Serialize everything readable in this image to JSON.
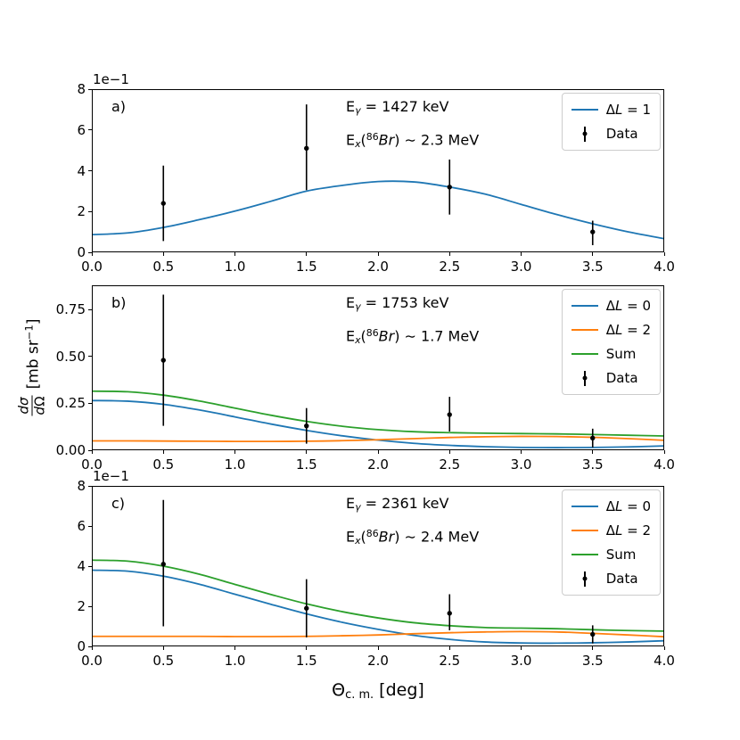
{
  "figure": {
    "xlabel_parts": [
      {
        "t": "Θ"
      },
      {
        "t": "c. m.",
        "s": "sub"
      },
      {
        "t": " [deg]"
      }
    ],
    "ylabel": {
      "numerator_parts": [
        {
          "t": "d",
          "s": "i"
        },
        {
          "t": "σ",
          "s": "i"
        }
      ],
      "denominator_parts": [
        {
          "t": "d",
          "s": "i"
        },
        {
          "t": "Ω"
        }
      ],
      "unit_parts": [
        {
          "t": "[mb sr"
        },
        {
          "t": "−1",
          "s": "sup"
        },
        {
          "t": "]"
        }
      ]
    },
    "colors": {
      "blue": "#1f77b4",
      "orange": "#ff7f0e",
      "green": "#2ca02c",
      "data": "#000000"
    }
  },
  "chart_data": [
    {
      "type": "line",
      "panel_label": "a)",
      "offset_text": "1e−1",
      "annotation_lines": [
        [
          {
            "t": "E"
          },
          {
            "t": "γ",
            "s": "i sub"
          },
          {
            "t": " = 1427 keV"
          }
        ],
        [
          {
            "t": "E"
          },
          {
            "t": "x",
            "s": "i sub"
          },
          {
            "t": "("
          },
          {
            "t": "86",
            "s": "sup"
          },
          {
            "t": "Br",
            "s": "i"
          },
          {
            "t": ") ∼ 2.3 MeV"
          }
        ]
      ],
      "xlim": [
        0,
        4
      ],
      "ylim": [
        0,
        8
      ],
      "xtick_labels": [
        "0.0",
        "0.5",
        "1.0",
        "1.5",
        "2.0",
        "2.5",
        "3.0",
        "3.5",
        "4.0"
      ],
      "xtick_values": [
        0,
        0.5,
        1,
        1.5,
        2,
        2.5,
        3,
        3.5,
        4
      ],
      "ytick_labels": [
        "0",
        "2",
        "4",
        "6",
        "8"
      ],
      "ytick_values": [
        0,
        2,
        4,
        6,
        8
      ],
      "series": [
        {
          "name": "ΔL = 1",
          "label_parts": [
            {
              "t": "Δ"
            },
            {
              "t": "L",
              "s": "i"
            },
            {
              "t": " = 1"
            }
          ],
          "color": "#1f77b4",
          "x": [
            0,
            0.25,
            0.5,
            0.75,
            1,
            1.25,
            1.5,
            1.75,
            2,
            2.25,
            2.5,
            2.75,
            3,
            3.25,
            3.5,
            3.75,
            4
          ],
          "y": [
            0.87,
            0.95,
            1.22,
            1.6,
            2.02,
            2.5,
            3.0,
            3.28,
            3.47,
            3.45,
            3.2,
            2.85,
            2.35,
            1.85,
            1.4,
            1.0,
            0.67
          ]
        }
      ],
      "data_points": {
        "name": "Data",
        "x": [
          0.5,
          1.5,
          2.5,
          3.5
        ],
        "y": [
          2.4,
          5.1,
          3.2,
          1.0
        ],
        "yerr_lo": [
          1.85,
          2.05,
          1.35,
          0.65
        ],
        "yerr_hi": [
          1.85,
          2.15,
          1.35,
          0.55
        ]
      }
    },
    {
      "type": "line",
      "panel_label": "b)",
      "offset_text": "",
      "annotation_lines": [
        [
          {
            "t": "E"
          },
          {
            "t": "γ",
            "s": "i sub"
          },
          {
            "t": " = 1753 keV"
          }
        ],
        [
          {
            "t": "E"
          },
          {
            "t": "x",
            "s": "i sub"
          },
          {
            "t": "("
          },
          {
            "t": "86",
            "s": "sup"
          },
          {
            "t": "Br",
            "s": "i"
          },
          {
            "t": ") ∼ 1.7 MeV"
          }
        ]
      ],
      "xlim": [
        0,
        4
      ],
      "ylim": [
        0,
        0.88
      ],
      "xtick_labels": [
        "0.0",
        "0.5",
        "1.0",
        "1.5",
        "2.0",
        "2.5",
        "3.0",
        "3.5",
        "4.0"
      ],
      "xtick_values": [
        0,
        0.5,
        1,
        1.5,
        2,
        2.5,
        3,
        3.5,
        4
      ],
      "ytick_labels": [
        "0.00",
        "0.25",
        "0.50",
        "0.75"
      ],
      "ytick_values": [
        0,
        0.25,
        0.5,
        0.75
      ],
      "series": [
        {
          "name": "ΔL = 0",
          "label_parts": [
            {
              "t": "Δ"
            },
            {
              "t": "L",
              "s": "i"
            },
            {
              "t": " = 0"
            }
          ],
          "color": "#1f77b4",
          "x": [
            0,
            0.25,
            0.5,
            0.75,
            1,
            1.25,
            1.5,
            1.75,
            2,
            2.25,
            2.5,
            2.75,
            3,
            3.25,
            3.5,
            3.75,
            4
          ],
          "y": [
            0.265,
            0.262,
            0.245,
            0.215,
            0.178,
            0.14,
            0.106,
            0.077,
            0.054,
            0.037,
            0.026,
            0.019,
            0.015,
            0.014,
            0.015,
            0.018,
            0.023
          ]
        },
        {
          "name": "ΔL = 2",
          "label_parts": [
            {
              "t": "Δ"
            },
            {
              "t": "L",
              "s": "i"
            },
            {
              "t": " = 2"
            }
          ],
          "color": "#ff7f0e",
          "x": [
            0,
            0.25,
            0.5,
            0.75,
            1,
            1.25,
            1.5,
            1.75,
            2,
            2.25,
            2.5,
            2.75,
            3,
            3.25,
            3.5,
            3.75,
            4
          ],
          "y": [
            0.05,
            0.05,
            0.049,
            0.048,
            0.047,
            0.047,
            0.048,
            0.051,
            0.056,
            0.062,
            0.068,
            0.072,
            0.074,
            0.073,
            0.069,
            0.062,
            0.053
          ]
        },
        {
          "name": "Sum",
          "label_parts": [
            {
              "t": "Sum"
            }
          ],
          "color": "#2ca02c",
          "x": [
            0,
            0.25,
            0.5,
            0.75,
            1,
            1.25,
            1.5,
            1.75,
            2,
            2.25,
            2.5,
            2.75,
            3,
            3.25,
            3.5,
            3.75,
            4
          ],
          "y": [
            0.315,
            0.312,
            0.294,
            0.263,
            0.225,
            0.187,
            0.154,
            0.128,
            0.11,
            0.099,
            0.094,
            0.091,
            0.089,
            0.087,
            0.084,
            0.08,
            0.076
          ]
        }
      ],
      "data_points": {
        "name": "Data",
        "x": [
          0.5,
          1.5,
          2.5,
          3.5
        ],
        "y": [
          0.48,
          0.13,
          0.19,
          0.065
        ],
        "yerr_lo": [
          0.35,
          0.095,
          0.09,
          0.05
        ],
        "yerr_hi": [
          0.35,
          0.095,
          0.095,
          0.05
        ]
      }
    },
    {
      "type": "line",
      "panel_label": "c)",
      "offset_text": "1e−1",
      "annotation_lines": [
        [
          {
            "t": "E"
          },
          {
            "t": "γ",
            "s": "i sub"
          },
          {
            "t": " = 2361 keV"
          }
        ],
        [
          {
            "t": "E"
          },
          {
            "t": "x",
            "s": "i sub"
          },
          {
            "t": "("
          },
          {
            "t": "86",
            "s": "sup"
          },
          {
            "t": "Br",
            "s": "i"
          },
          {
            "t": ") ∼ 2.4 MeV"
          }
        ]
      ],
      "xlim": [
        0,
        4
      ],
      "ylim": [
        0,
        8
      ],
      "xtick_labels": [
        "0.0",
        "0.5",
        "1.0",
        "1.5",
        "2.0",
        "2.5",
        "3.0",
        "3.5",
        "4.0"
      ],
      "xtick_values": [
        0,
        0.5,
        1,
        1.5,
        2,
        2.5,
        3,
        3.5,
        4
      ],
      "ytick_labels": [
        "0",
        "2",
        "4",
        "6",
        "8"
      ],
      "ytick_values": [
        0,
        2,
        4,
        6,
        8
      ],
      "series": [
        {
          "name": "ΔL = 0",
          "label_parts": [
            {
              "t": "Δ"
            },
            {
              "t": "L",
              "s": "i"
            },
            {
              "t": " = 0"
            }
          ],
          "color": "#1f77b4",
          "x": [
            0,
            0.25,
            0.5,
            0.75,
            1,
            1.25,
            1.5,
            1.75,
            2,
            2.25,
            2.5,
            2.75,
            3,
            3.25,
            3.5,
            3.75,
            4
          ],
          "y": [
            3.8,
            3.75,
            3.5,
            3.1,
            2.6,
            2.1,
            1.62,
            1.2,
            0.85,
            0.55,
            0.35,
            0.22,
            0.17,
            0.16,
            0.18,
            0.22,
            0.28
          ]
        },
        {
          "name": "ΔL = 2",
          "label_parts": [
            {
              "t": "Δ"
            },
            {
              "t": "L",
              "s": "i"
            },
            {
              "t": " = 2"
            }
          ],
          "color": "#ff7f0e",
          "x": [
            0,
            0.25,
            0.5,
            0.75,
            1,
            1.25,
            1.5,
            1.75,
            2,
            2.25,
            2.5,
            2.75,
            3,
            3.25,
            3.5,
            3.75,
            4
          ],
          "y": [
            0.5,
            0.5,
            0.5,
            0.5,
            0.49,
            0.49,
            0.5,
            0.53,
            0.57,
            0.63,
            0.68,
            0.72,
            0.74,
            0.72,
            0.65,
            0.57,
            0.48
          ]
        },
        {
          "name": "Sum",
          "label_parts": [
            {
              "t": "Sum"
            }
          ],
          "color": "#2ca02c",
          "x": [
            0,
            0.25,
            0.5,
            0.75,
            1,
            1.25,
            1.5,
            1.75,
            2,
            2.25,
            2.5,
            2.75,
            3,
            3.25,
            3.5,
            3.75,
            4
          ],
          "y": [
            4.3,
            4.25,
            4.0,
            3.6,
            3.09,
            2.59,
            2.12,
            1.73,
            1.42,
            1.18,
            1.03,
            0.94,
            0.91,
            0.88,
            0.83,
            0.79,
            0.76
          ]
        }
      ],
      "data_points": {
        "name": "Data",
        "x": [
          0.5,
          1.5,
          2.5,
          3.5
        ],
        "y": [
          4.1,
          1.9,
          1.65,
          0.6
        ],
        "yerr_lo": [
          3.1,
          1.45,
          0.85,
          0.45
        ],
        "yerr_hi": [
          3.2,
          1.45,
          0.95,
          0.45
        ]
      }
    }
  ]
}
